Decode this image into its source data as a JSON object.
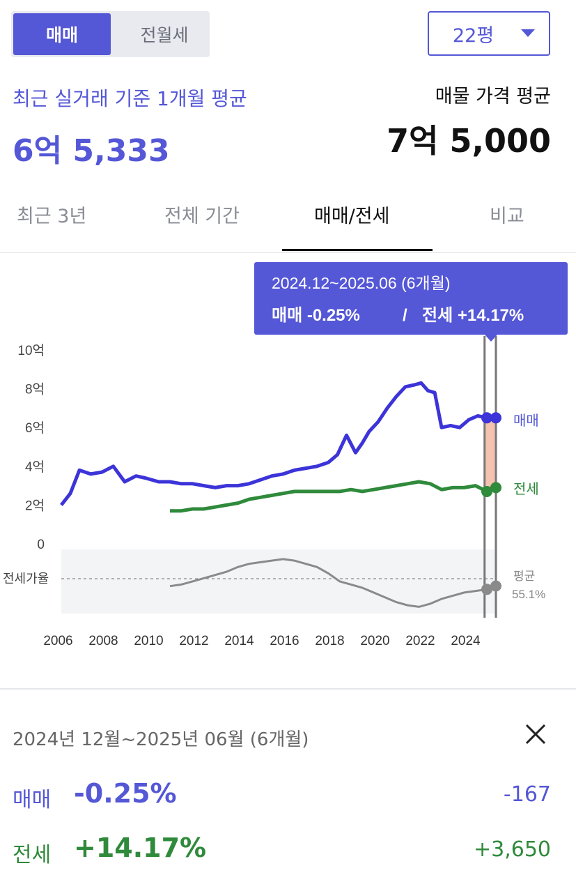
{
  "toggle": {
    "sale": "매매",
    "rent": "전월세"
  },
  "size_select": {
    "value": "22평"
  },
  "summary": {
    "recent_label": "최근 실거래 기준 1개월 평균",
    "recent_value": "6억 5,333",
    "listing_label": "매물 가격 평균",
    "listing_value": "7억 5,000"
  },
  "tabs": [
    {
      "label": "최근 3년"
    },
    {
      "label": "전체 기간"
    },
    {
      "label": "매매/전세"
    },
    {
      "label": "비교"
    }
  ],
  "tooltip": {
    "period": "2024.12~2025.06 (6개월)",
    "sale_part": "매매 -0.25%",
    "separator": "/",
    "rent_part": "전세 +14.17%"
  },
  "colors": {
    "accent": "#5457d6",
    "sale_line": "#3c34d8",
    "rent_line": "#2f8a3b",
    "ratio_line": "#8a8a8a",
    "highlight": "#f6c2b0"
  },
  "chart_data": {
    "type": "line",
    "y_unit": "억",
    "y_ticks": [
      "10억",
      "8억",
      "6억",
      "4억",
      "2억",
      "0"
    ],
    "ylim": [
      0,
      10
    ],
    "x_ticks": [
      "2006",
      "2008",
      "2010",
      "2012",
      "2014",
      "2016",
      "2018",
      "2020",
      "2022",
      "2024"
    ],
    "xlim": [
      2006.2,
      2025.4
    ],
    "series": [
      {
        "name": "매매",
        "x": [
          2006.2,
          2006.6,
          2007.0,
          2007.5,
          2008.0,
          2008.5,
          2009.0,
          2009.5,
          2009.9,
          2010.5,
          2011.0,
          2011.5,
          2012.0,
          2012.5,
          2013.0,
          2013.5,
          2014.0,
          2014.5,
          2015.0,
          2015.5,
          2016.0,
          2016.5,
          2017.0,
          2017.5,
          2018.0,
          2018.4,
          2018.8,
          2019.2,
          2019.5,
          2019.8,
          2020.2,
          2020.6,
          2021.0,
          2021.4,
          2021.8,
          2022.1,
          2022.4,
          2022.7,
          2023.0,
          2023.4,
          2023.8,
          2024.2,
          2024.6,
          2025.0,
          2025.4
        ],
        "values": [
          2.0,
          2.6,
          3.8,
          3.6,
          3.7,
          4.0,
          3.2,
          3.5,
          3.4,
          3.2,
          3.2,
          3.1,
          3.1,
          3.0,
          2.9,
          3.0,
          3.0,
          3.1,
          3.3,
          3.5,
          3.6,
          3.8,
          3.9,
          4.0,
          4.2,
          4.6,
          5.6,
          4.7,
          5.2,
          5.8,
          6.3,
          7.0,
          7.6,
          8.1,
          8.2,
          8.3,
          7.9,
          7.8,
          6.0,
          6.1,
          6.0,
          6.4,
          6.6,
          6.5,
          6.5
        ]
      },
      {
        "name": "전세",
        "x": [
          2011.0,
          2011.5,
          2012.0,
          2012.5,
          2013.0,
          2013.5,
          2014.0,
          2014.5,
          2015.0,
          2015.5,
          2016.0,
          2016.5,
          2017.0,
          2017.5,
          2018.0,
          2018.5,
          2019.0,
          2019.5,
          2020.0,
          2020.5,
          2021.0,
          2021.5,
          2022.0,
          2022.5,
          2023.0,
          2023.5,
          2024.0,
          2024.5,
          2025.0,
          2025.4
        ],
        "values": [
          1.7,
          1.7,
          1.8,
          1.8,
          1.9,
          2.0,
          2.1,
          2.3,
          2.4,
          2.5,
          2.6,
          2.7,
          2.7,
          2.7,
          2.7,
          2.7,
          2.8,
          2.7,
          2.8,
          2.9,
          3.0,
          3.1,
          3.2,
          3.1,
          2.8,
          2.9,
          2.9,
          3.0,
          2.7,
          2.9
        ]
      },
      {
        "name": "전세가율",
        "x": [
          2011.0,
          2011.5,
          2012.0,
          2012.5,
          2013.0,
          2013.5,
          2014.0,
          2014.5,
          2015.0,
          2015.5,
          2016.0,
          2016.5,
          2017.0,
          2017.5,
          2018.0,
          2018.5,
          2019.0,
          2019.5,
          2020.0,
          2020.5,
          2021.0,
          2021.5,
          2022.0,
          2022.5,
          2023.0,
          2023.5,
          2024.0,
          2024.5,
          2025.0,
          2025.4
        ],
        "values": [
          55,
          56,
          58,
          60,
          62,
          64,
          67,
          69,
          70,
          71,
          72,
          71,
          69,
          67,
          63,
          58,
          56,
          54,
          51,
          48,
          45,
          43,
          42,
          44,
          47,
          49,
          51,
          52,
          53,
          55.1
        ]
      }
    ],
    "ratio_label": "전세가율",
    "ratio_avg_label": "평균",
    "ratio_avg_value": "55.1%",
    "end_labels": {
      "sale": "매매",
      "rent": "전세"
    },
    "highlight_range": [
      2024.9,
      2025.4
    ]
  },
  "detail": {
    "range_label": "2024년 12월~2025년 06월 (6개월)",
    "rows": [
      {
        "label": "매매",
        "change_pct": "-0.25%",
        "change_value": "-167"
      },
      {
        "label": "전세",
        "change_pct": "+14.17%",
        "change_value": "+3,650"
      }
    ]
  }
}
